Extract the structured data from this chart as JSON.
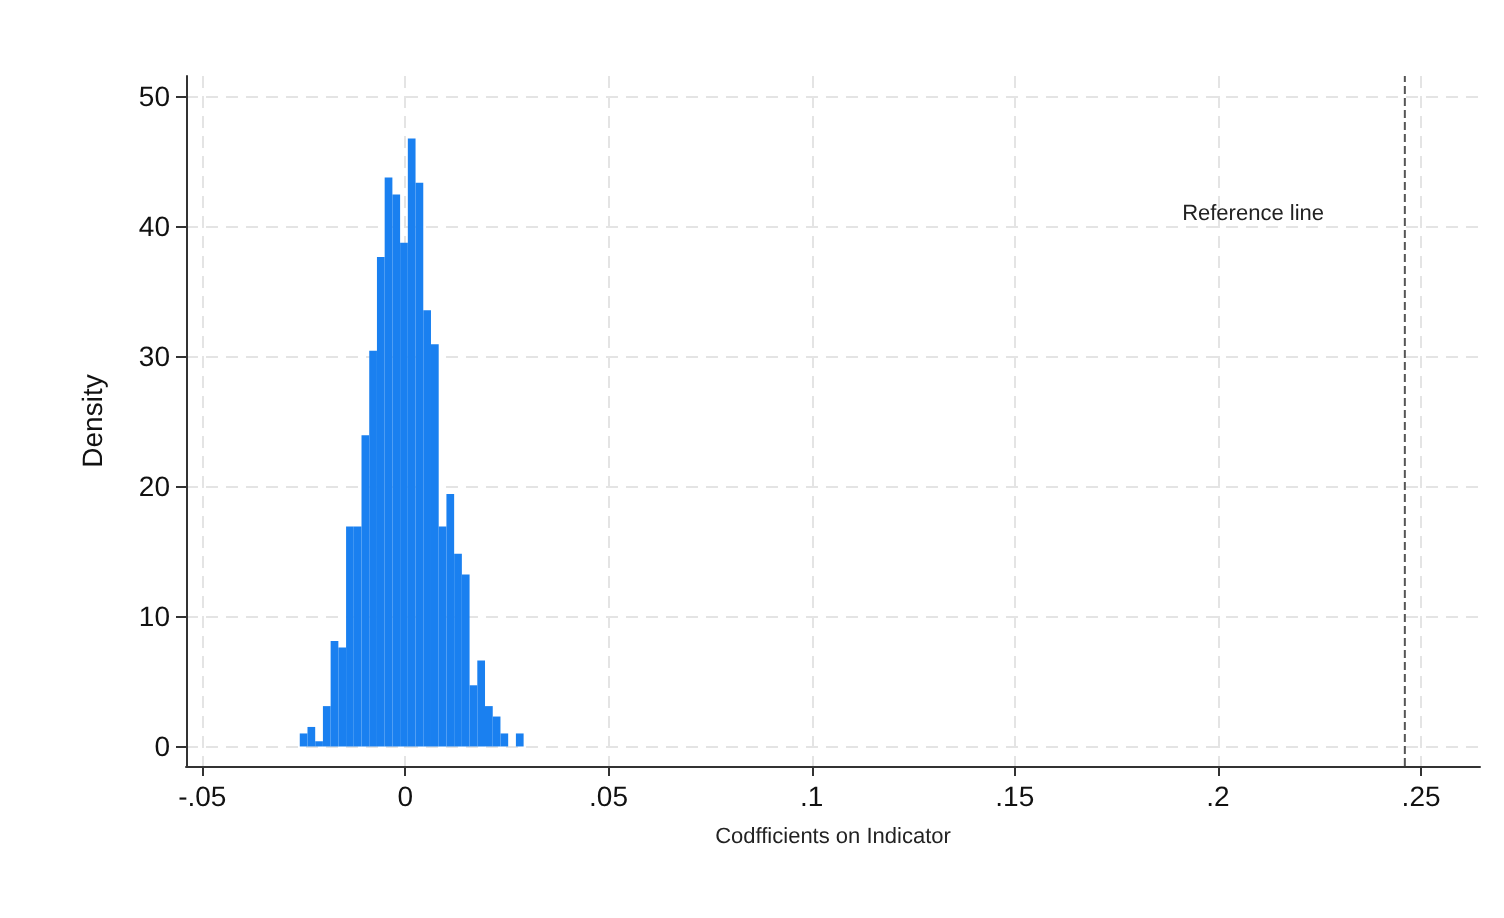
{
  "chart_data": {
    "type": "histogram",
    "xlabel": "Codfficients on Indicator",
    "ylabel": "Density",
    "color": "#1a80f0",
    "bins": [
      -0.026,
      -0.0241,
      -0.0222,
      -0.0203,
      -0.0184,
      -0.0165,
      -0.0146,
      -0.0127,
      -0.0108,
      -0.0089,
      -0.007,
      -0.0051,
      -0.0032,
      -0.0013,
      0.0006,
      0.0025,
      0.0044,
      0.0063,
      0.0082,
      0.0101,
      0.012,
      0.0139,
      0.0158,
      0.0177,
      0.0196,
      0.0215,
      0.0234,
      0.0253,
      0.0272,
      0.0291
    ],
    "values": [
      1.0,
      1.5,
      0.4,
      3.1,
      8.1,
      7.6,
      16.9,
      16.9,
      23.9,
      30.4,
      37.6,
      43.7,
      42.4,
      38.7,
      46.7,
      43.3,
      33.5,
      30.9,
      16.9,
      19.4,
      14.8,
      13.2,
      4.7,
      6.6,
      3.1,
      2.3,
      1.0,
      0,
      1.0
    ],
    "xlim": [
      -0.054,
      0.2645
    ],
    "xticks": [
      {
        "value": -0.05,
        "label": "-.05"
      },
      {
        "value": 0,
        "label": "0"
      },
      {
        "value": 0.05,
        "label": ".05"
      },
      {
        "value": 0.1,
        "label": ".1"
      },
      {
        "value": 0.15,
        "label": ".15"
      },
      {
        "value": 0.2,
        "label": ".2"
      },
      {
        "value": 0.25,
        "label": ".25"
      }
    ],
    "ylim": [
      -1.5,
      51.5
    ],
    "yticks": [
      0,
      10,
      20,
      30,
      40,
      50
    ],
    "grid": true,
    "annotations": [
      "Reference line"
    ],
    "ref_lines": [
      {
        "axis": "x",
        "value": 0.246,
        "color": "#555555",
        "line_style": "dashed"
      }
    ]
  }
}
